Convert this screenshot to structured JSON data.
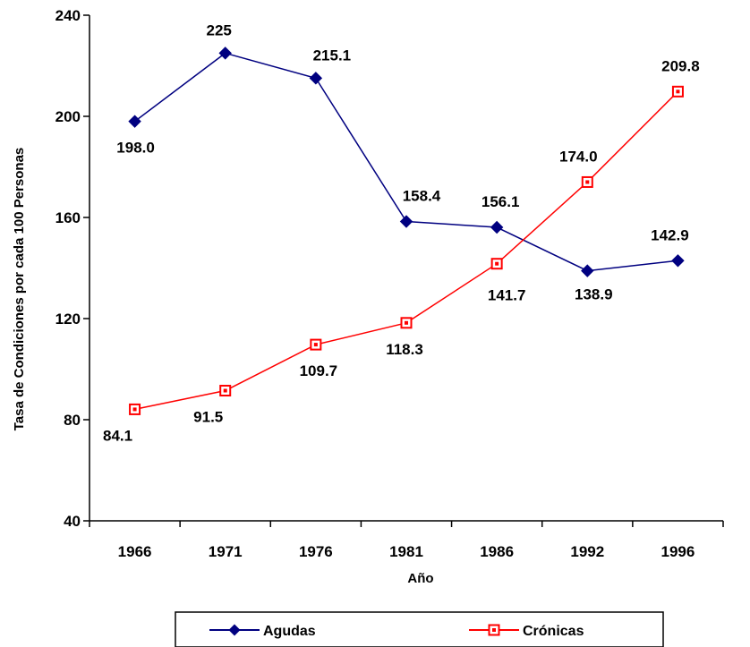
{
  "chart_data": {
    "type": "line",
    "categories": [
      "1966",
      "1971",
      "1976",
      "1981",
      "1986",
      "1992",
      "1996"
    ],
    "series": [
      {
        "name": "Agudas",
        "values": [
          198.0,
          225,
          215.1,
          158.4,
          156.1,
          138.9,
          142.9
        ],
        "labels": [
          "198.0",
          "225",
          "215.1",
          "158.4",
          "156.1",
          "138.9",
          "142.9"
        ],
        "color": "#000080",
        "marker": "diamond"
      },
      {
        "name": "Crónicas",
        "values": [
          84.1,
          91.5,
          109.7,
          118.3,
          141.7,
          174.0,
          209.8
        ],
        "labels": [
          "84.1",
          "91.5",
          "109.7",
          "118.3",
          "141.7",
          "174.0",
          "209.8"
        ],
        "color": "#ff0000",
        "marker": "square"
      }
    ],
    "xlabel": "Año",
    "ylabel": "Tasa de Condiciones por cada 100 Personas",
    "ylim": [
      40,
      240
    ],
    "yticks": [
      "40",
      "80",
      "120",
      "160",
      "200",
      "240"
    ],
    "grid": false,
    "legend_position": "bottom"
  }
}
